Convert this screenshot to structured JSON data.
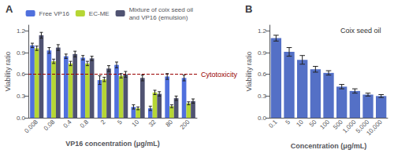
{
  "chart_data": [
    {
      "type": "bar",
      "title": "A",
      "xlabel": "VP16 concentration (μg/mL)",
      "ylabel": "Viability ratio",
      "categories": [
        "0.008",
        "0.08",
        "0.4",
        "0.8",
        "2",
        "5",
        "10",
        "32",
        "80",
        "200"
      ],
      "series": [
        {
          "name": "Free VP16",
          "values": [
            1.0,
            0.93,
            0.85,
            0.83,
            0.52,
            0.73,
            0.15,
            0.13,
            0.57,
            0.55
          ],
          "errors": [
            0.03,
            0.04,
            0.03,
            0.03,
            0.06,
            0.04,
            0.03,
            0.03,
            0.04,
            0.04
          ]
        },
        {
          "name": "EC-ME",
          "values": [
            0.96,
            0.78,
            0.75,
            0.75,
            0.53,
            0.58,
            0.13,
            0.35,
            0.16,
            0.2
          ],
          "errors": [
            0.03,
            0.03,
            0.03,
            0.03,
            0.03,
            0.03,
            0.02,
            0.03,
            0.02,
            0.02
          ]
        },
        {
          "name": "Mixture of coix seed oil\nand VP16 (emulsion)",
          "values": [
            1.14,
            0.97,
            0.88,
            0.82,
            0.68,
            0.6,
            0.55,
            0.33,
            0.27,
            0.23
          ],
          "errors": [
            0.04,
            0.04,
            0.04,
            0.03,
            0.04,
            0.04,
            0.04,
            0.03,
            0.03,
            0.03
          ]
        }
      ],
      "reference_line": {
        "y": 0.6,
        "label": "Cytotoxicity",
        "color": "#990000",
        "line_style": "dashed"
      },
      "ylim": [
        0,
        1.28
      ],
      "yticks": [
        {
          "value": 0.0,
          "label": "0.0"
        },
        0.3,
        0.6,
        0.9,
        1.2
      ],
      "grid": false,
      "legend": "upper right"
    },
    {
      "type": "bar",
      "title": "B",
      "xlabel": "Concentration (μg/mL)",
      "ylabel": "Viability ratio",
      "categories": [
        "0.1",
        "5",
        "10",
        "50",
        "100",
        "500",
        "1,000",
        "5,000",
        "10,000"
      ],
      "values": [
        1.1,
        0.91,
        0.8,
        0.67,
        0.62,
        0.43,
        0.37,
        0.32,
        0.3
      ],
      "errors": [
        0.04,
        0.06,
        0.06,
        0.04,
        0.03,
        0.03,
        0.03,
        0.02,
        0.02
      ],
      "color": "#5470c6",
      "annotation": "Coix seed oil",
      "ylim": [
        0,
        1.28
      ],
      "yticks": [
        {
          "value": 0.0,
          "label": "0.0"
        },
        0.3,
        0.6,
        0.9,
        1.2
      ],
      "grid": false
    }
  ]
}
